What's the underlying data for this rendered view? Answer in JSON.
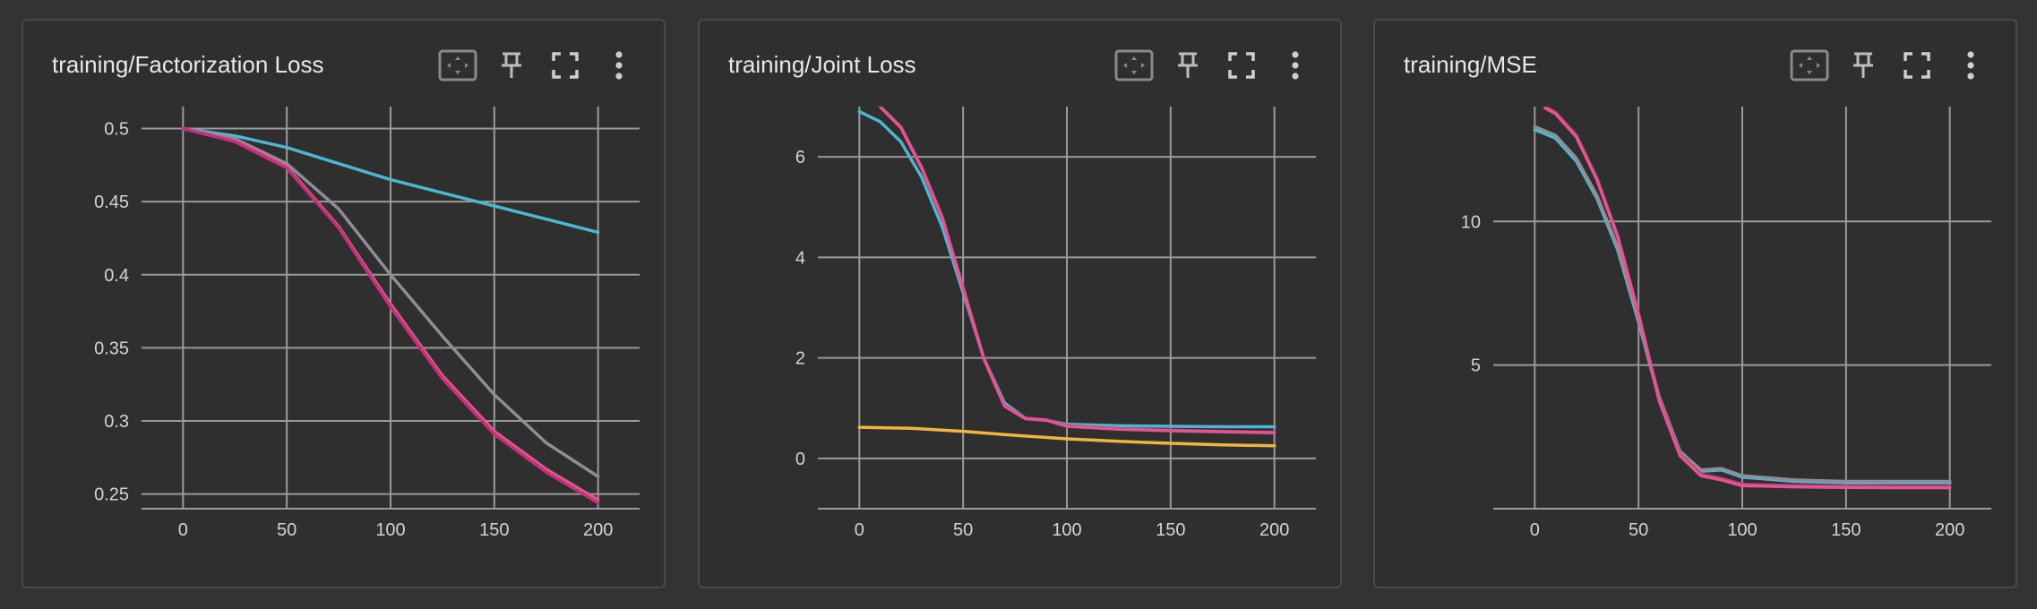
{
  "colors": {
    "background": "#333333",
    "card": "#2f2f2f",
    "grid": "#9a9a9a",
    "series": [
      "#e35591",
      "#c2317a",
      "#8e8e99",
      "#4bb8d0",
      "#efb63f"
    ]
  },
  "toolbar_icons": [
    "fit-domain-icon",
    "pin-icon",
    "fullscreen-icon",
    "more-vert-icon"
  ],
  "cards": [
    {
      "title": "training/Factorization Loss",
      "chart_data": {
        "type": "line",
        "xlabel": "",
        "ylabel": "",
        "xlim": [
          -20,
          220
        ],
        "ylim": [
          0.24,
          0.515
        ],
        "grid": true,
        "x_ticks": [
          0,
          50,
          100,
          150,
          200
        ],
        "x_tick_labels": [
          "0",
          "50",
          "100",
          "150",
          "200"
        ],
        "y_ticks": [
          0.25,
          0.3,
          0.35,
          0.4,
          0.45,
          0.5
        ],
        "y_tick_labels": [
          "0.25",
          "0.3",
          "0.35",
          "0.4",
          "0.45",
          "0.5"
        ],
        "series": [
          {
            "color": "#4bb8d0",
            "x": [
              0,
              25,
              50,
              75,
              100,
              125,
              150,
              175,
              200
            ],
            "y": [
              0.5,
              0.495,
              0.487,
              0.476,
              0.465,
              0.456,
              0.447,
              0.438,
              0.429
            ]
          },
          {
            "color": "#8e8e99",
            "x": [
              0,
              25,
              50,
              75,
              100,
              125,
              150,
              175,
              200
            ],
            "y": [
              0.5,
              0.493,
              0.476,
              0.445,
              0.4,
              0.358,
              0.318,
              0.285,
              0.262
            ]
          },
          {
            "color": "#e35591",
            "x": [
              0,
              25,
              50,
              75,
              100,
              125,
              150,
              175,
              200
            ],
            "y": [
              0.5,
              0.492,
              0.474,
              0.433,
              0.38,
              0.331,
              0.293,
              0.267,
              0.246
            ]
          },
          {
            "color": "#c2317a",
            "x": [
              0,
              25,
              50,
              75,
              100,
              125,
              150,
              175,
              200
            ],
            "y": [
              0.5,
              0.491,
              0.473,
              0.432,
              0.378,
              0.329,
              0.291,
              0.265,
              0.244
            ]
          }
        ]
      }
    },
    {
      "title": "training/Joint Loss",
      "chart_data": {
        "type": "line",
        "xlabel": "",
        "ylabel": "",
        "xlim": [
          -20,
          220
        ],
        "ylim": [
          -1,
          7
        ],
        "grid": true,
        "x_ticks": [
          0,
          50,
          100,
          150,
          200
        ],
        "x_tick_labels": [
          "0",
          "50",
          "100",
          "150",
          "200"
        ],
        "y_ticks": [
          0,
          2,
          4,
          6
        ],
        "y_tick_labels": [
          "0",
          "2",
          "4",
          "6"
        ],
        "series": [
          {
            "color": "#efb63f",
            "x": [
              0,
              25,
              50,
              75,
              100,
              125,
              150,
              175,
              200
            ],
            "y": [
              0.62,
              0.6,
              0.54,
              0.46,
              0.39,
              0.34,
              0.3,
              0.27,
              0.25
            ]
          },
          {
            "color": "#4bb8d0",
            "x": [
              0,
              10,
              20,
              30,
              40,
              50,
              60,
              70,
              80,
              90,
              100,
              125,
              150,
              175,
              200
            ],
            "y": [
              6.9,
              6.7,
              6.3,
              5.6,
              4.6,
              3.3,
              2.0,
              1.1,
              0.8,
              0.76,
              0.68,
              0.65,
              0.64,
              0.63,
              0.63
            ]
          },
          {
            "color": "#c2317a",
            "x": [
              10,
              20,
              30,
              40,
              50,
              60,
              70,
              80,
              90,
              100,
              125,
              150,
              175,
              200
            ],
            "y": [
              7.0,
              6.6,
              5.8,
              4.8,
              3.4,
              2.0,
              1.05,
              0.8,
              0.77,
              0.65,
              0.59,
              0.56,
              0.54,
              0.52
            ]
          },
          {
            "color": "#e35591",
            "x": [
              10,
              20,
              30,
              40,
              50,
              60,
              70,
              80,
              90,
              100,
              125,
              150,
              175,
              200
            ],
            "y": [
              7.0,
              6.58,
              5.78,
              4.78,
              3.38,
              1.98,
              1.04,
              0.79,
              0.76,
              0.64,
              0.58,
              0.55,
              0.53,
              0.51
            ]
          }
        ]
      }
    },
    {
      "title": "training/MSE",
      "chart_data": {
        "type": "line",
        "xlabel": "",
        "ylabel": "",
        "xlim": [
          -20,
          220
        ],
        "ylim": [
          0,
          14
        ],
        "grid": true,
        "x_ticks": [
          0,
          50,
          100,
          150,
          200
        ],
        "x_tick_labels": [
          "0",
          "50",
          "100",
          "150",
          "200"
        ],
        "y_ticks": [
          5,
          10
        ],
        "y_tick_labels": [
          "5",
          "10"
        ],
        "series": [
          {
            "color": "#4bb8d0",
            "x": [
              0,
              10,
              20,
              30,
              40,
              50,
              60,
              70,
              80,
              90,
              100,
              125,
              150,
              175,
              200
            ],
            "y": [
              13.2,
              12.9,
              12.1,
              10.8,
              9.0,
              6.5,
              3.8,
              1.9,
              1.3,
              1.35,
              1.1,
              0.95,
              0.9,
              0.9,
              0.9
            ]
          },
          {
            "color": "#8e8e99",
            "x": [
              0,
              10,
              20,
              30,
              40,
              50,
              60,
              70,
              80,
              90,
              100,
              125,
              150,
              175,
              200
            ],
            "y": [
              13.3,
              13.0,
              12.2,
              10.9,
              9.1,
              6.6,
              3.9,
              2.0,
              1.35,
              1.4,
              1.15,
              1.0,
              0.95,
              0.95,
              0.95
            ]
          },
          {
            "color": "#c2317a",
            "x": [
              5,
              10,
              20,
              30,
              40,
              50,
              60,
              70,
              80,
              90,
              100,
              125,
              150,
              175,
              200
            ],
            "y": [
              14.0,
              13.8,
              13.0,
              11.5,
              9.5,
              6.8,
              3.8,
              1.9,
              1.2,
              1.05,
              0.85,
              0.8,
              0.78,
              0.77,
              0.77
            ]
          },
          {
            "color": "#e35591",
            "x": [
              5,
              10,
              20,
              30,
              40,
              50,
              60,
              70,
              80,
              90,
              100,
              125,
              150,
              175,
              200
            ],
            "y": [
              13.95,
              13.75,
              12.95,
              11.45,
              9.45,
              6.75,
              3.75,
              1.85,
              1.15,
              1.0,
              0.8,
              0.76,
              0.74,
              0.73,
              0.73
            ]
          }
        ]
      }
    }
  ]
}
